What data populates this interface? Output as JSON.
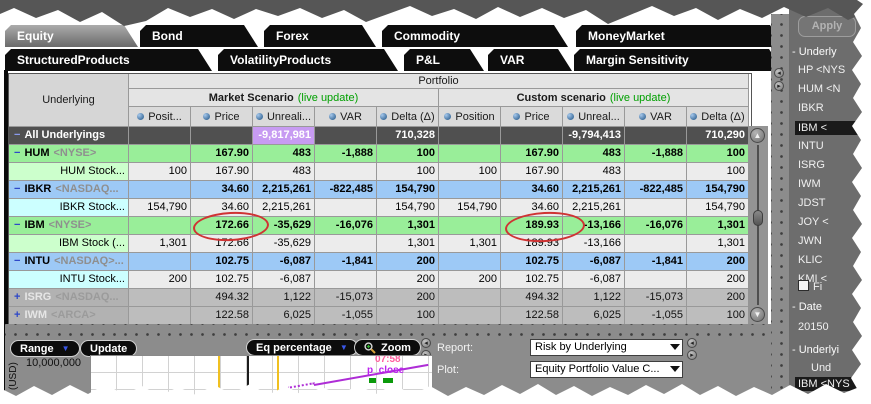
{
  "tabs": {
    "row1": [
      {
        "label": "Equity",
        "selected": true
      },
      {
        "label": "Bond",
        "selected": false
      },
      {
        "label": "Forex",
        "selected": false
      },
      {
        "label": "Commodity",
        "selected": false
      },
      {
        "label": "MoneyMarket",
        "selected": false
      }
    ],
    "row2": [
      {
        "label": "StructuredProducts"
      },
      {
        "label": "VolatilityProducts"
      },
      {
        "label": "P&L"
      },
      {
        "label": "VAR"
      },
      {
        "label": "Margin Sensitivity"
      }
    ]
  },
  "table": {
    "underlying_header": "Underlying",
    "portfolio_header": "Portfolio",
    "market_header": "Market Scenario",
    "custom_header": "Custom scenario",
    "live_update": "(live update)",
    "columns": [
      "Posit...",
      "Price",
      "Unreali...",
      "VAR",
      "Delta (Δ)",
      "Position",
      "Price",
      "Unreal...",
      "VAR",
      "Delta (Δ)"
    ],
    "rows": [
      {
        "style": "dark",
        "icon": "−",
        "name": "All Underlyings",
        "suffix": "",
        "child": false,
        "m_pos": "",
        "m_price": "",
        "m_unreal": "-9,817,981",
        "m_var": "",
        "m_delta": "710,328",
        "c_pos": "",
        "c_price": "",
        "c_unreal": "-9,794,413",
        "c_var": "",
        "c_delta": "710,290"
      },
      {
        "style": "pg",
        "icon": "−",
        "name": "HUM",
        "suffix": "<NYSE>",
        "child": false,
        "m_pos": "",
        "m_price": "167.90",
        "m_unreal": "483",
        "m_var": "-1,888",
        "m_delta": "100",
        "c_pos": "",
        "c_price": "167.90",
        "c_unreal": "483",
        "c_var": "-1,888",
        "c_delta": "100"
      },
      {
        "style": "cg",
        "icon": "",
        "name": "HUM Stock...",
        "suffix": "",
        "child": true,
        "m_pos": "100",
        "m_price": "167.90",
        "m_unreal": "483",
        "m_var": "",
        "m_delta": "100",
        "c_pos": "100",
        "c_price": "167.90",
        "c_unreal": "483",
        "c_var": "",
        "c_delta": "100"
      },
      {
        "style": "pb",
        "icon": "−",
        "name": "IBKR",
        "suffix": "<NASDAQ...",
        "child": false,
        "m_pos": "",
        "m_price": "34.60",
        "m_unreal": "2,215,261",
        "m_var": "-822,485",
        "m_delta": "154,790",
        "c_pos": "",
        "c_price": "34.60",
        "c_unreal": "2,215,261",
        "c_var": "-822,485",
        "c_delta": "154,790"
      },
      {
        "style": "cb",
        "icon": "",
        "name": "IBKR Stock...",
        "suffix": "",
        "child": true,
        "m_pos": "154,790",
        "m_price": "34.60",
        "m_unreal": "2,215,261",
        "m_var": "",
        "m_delta": "154,790",
        "c_pos": "154,790",
        "c_price": "34.60",
        "c_unreal": "2,215,261",
        "c_var": "",
        "c_delta": "154,790"
      },
      {
        "style": "pg",
        "icon": "−",
        "name": "IBM",
        "suffix": "<NYSE>",
        "child": false,
        "m_pos": "",
        "m_price": "172.66",
        "m_unreal": "-35,629",
        "m_var": "-16,076",
        "m_delta": "1,301",
        "c_pos": "",
        "c_price": "189.93",
        "c_unreal": "-13,166",
        "c_var": "-16,076",
        "c_delta": "1,301"
      },
      {
        "style": "cg",
        "icon": "",
        "name": "IBM Stock (...",
        "suffix": "",
        "child": true,
        "m_pos": "1,301",
        "m_price": "172.66",
        "m_unreal": "-35,629",
        "m_var": "",
        "m_delta": "1,301",
        "c_pos": "1,301",
        "c_price": "189.93",
        "c_unreal": "-13,166",
        "c_var": "",
        "c_delta": "1,301"
      },
      {
        "style": "pb",
        "icon": "−",
        "name": "INTU",
        "suffix": "<NASDAQ>...",
        "child": false,
        "m_pos": "",
        "m_price": "102.75",
        "m_unreal": "-6,087",
        "m_var": "-1,841",
        "m_delta": "200",
        "c_pos": "",
        "c_price": "102.75",
        "c_unreal": "-6,087",
        "c_var": "-1,841",
        "c_delta": "200"
      },
      {
        "style": "cb",
        "icon": "",
        "name": "INTU Stock...",
        "suffix": "",
        "child": true,
        "m_pos": "200",
        "m_price": "102.75",
        "m_unreal": "-6,087",
        "m_var": "",
        "m_delta": "200",
        "c_pos": "200",
        "c_price": "102.75",
        "c_unreal": "-6,087",
        "c_var": "",
        "c_delta": "200"
      },
      {
        "style": "gray",
        "icon": "+",
        "name": "ISRG",
        "suffix": "<NASDAQ...",
        "child": false,
        "m_pos": "",
        "m_price": "494.32",
        "m_unreal": "1,122",
        "m_var": "-15,073",
        "m_delta": "200",
        "c_pos": "",
        "c_price": "494.32",
        "c_unreal": "1,122",
        "c_var": "-15,073",
        "c_delta": "200"
      },
      {
        "style": "gray",
        "icon": "+",
        "name": "IWM",
        "suffix": "<ARCA>",
        "child": false,
        "m_pos": "",
        "m_price": "122.58",
        "m_unreal": "6,025",
        "m_var": "-1,055",
        "m_delta": "100",
        "c_pos": "",
        "c_price": "122.58",
        "c_unreal": "6,025",
        "c_var": "-1,055",
        "c_delta": "100"
      }
    ]
  },
  "controls": {
    "range": "Range",
    "update": "Update",
    "eq_percentage": "Eq percentage",
    "zoom": "Zoom",
    "report_label": "Report:",
    "report_value": "Risk by Underlying",
    "plot_label": "Plot:",
    "plot_value": "Equity Portfolio Value C..."
  },
  "chart": {
    "axis_unit": "(USD)",
    "y_tick": "10,000,000",
    "time_label": "07:58",
    "series_label": "p_close"
  },
  "sidebar": {
    "apply": "Apply",
    "group_top": "- Underly",
    "items": [
      {
        "label": "HP <NYS",
        "selected": false
      },
      {
        "label": "HUM <N",
        "selected": false
      },
      {
        "label": "IBKR",
        "selected": false
      },
      {
        "label": "IBM <",
        "selected": true
      },
      {
        "label": "INTU",
        "selected": false
      },
      {
        "label": "ISRG",
        "selected": false
      },
      {
        "label": "IWM",
        "selected": false
      },
      {
        "label": "JDST",
        "selected": false
      },
      {
        "label": "JOY <",
        "selected": false
      },
      {
        "label": "JWN",
        "selected": false
      },
      {
        "label": "KLIC",
        "selected": false
      },
      {
        "label": "KMI <",
        "selected": false
      }
    ],
    "checkbox_label": "Fi",
    "date_group": "- Date",
    "date_value": "20150",
    "group_bottom": "- Underlyi",
    "und_label": "Und",
    "selected_bottom": "IBM <NYS"
  },
  "colors": {
    "accent_green_text": "#00a000",
    "parent_green_row": "#99ee99",
    "parent_blue_row": "#9dc9f6",
    "lavender_cell": "#c79bf2",
    "annotation_red": "#cf3333"
  }
}
